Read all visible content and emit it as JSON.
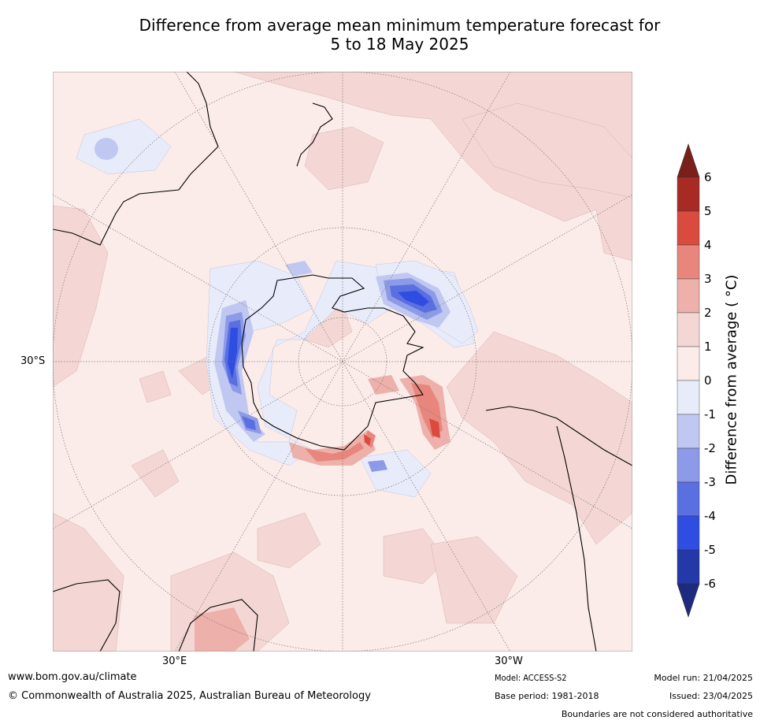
{
  "title": {
    "line1": "Difference from average mean minimum temperature forecast for",
    "line2": "5 to 18 May 2025"
  },
  "map": {
    "projection": "south polar stereographic",
    "lat_label": "30°S",
    "lon_labels": {
      "east": "30°E",
      "west": "30°W"
    }
  },
  "colorbar": {
    "title": "Difference from average ( °C)",
    "ticks": [
      "6",
      "5",
      "4",
      "3",
      "2",
      "1",
      "0",
      "-1",
      "-2",
      "-3",
      "-4",
      "-5",
      "-6"
    ],
    "bins": [
      {
        "range": "> 6",
        "color": "#7a1f1a"
      },
      {
        "range": "5 to 6",
        "color": "#a82a24"
      },
      {
        "range": "4 to 5",
        "color": "#d94a3f"
      },
      {
        "range": "3 to 4",
        "color": "#e8867d"
      },
      {
        "range": "2 to 3",
        "color": "#edb0aa"
      },
      {
        "range": "1 to 2",
        "color": "#f4d7d4"
      },
      {
        "range": "0 to 1",
        "color": "#fbebe9"
      },
      {
        "range": "-1 to 0",
        "color": "#e8ebfa"
      },
      {
        "range": "-2 to -1",
        "color": "#c0c8f2"
      },
      {
        "range": "-3 to -2",
        "color": "#8c9ae8"
      },
      {
        "range": "-4 to -3",
        "color": "#5a6fe0"
      },
      {
        "range": "-5 to -4",
        "color": "#2f4de0"
      },
      {
        "range": "-6 to -5",
        "color": "#2438a8"
      },
      {
        "range": "< -6",
        "color": "#1e2a80"
      }
    ]
  },
  "footer": {
    "website": "www.bom.gov.au/climate",
    "copyright": "© Commonwealth of Australia 2025, Australian Bureau of Meteorology",
    "model": "Model: ACCESS-S2",
    "base_period": "Base period: 1981-2018",
    "model_run": "Model run: 21/04/2025",
    "issued": "Issued: 23/04/2025",
    "disclaimer": "Boundaries are not considered authoritative"
  }
}
